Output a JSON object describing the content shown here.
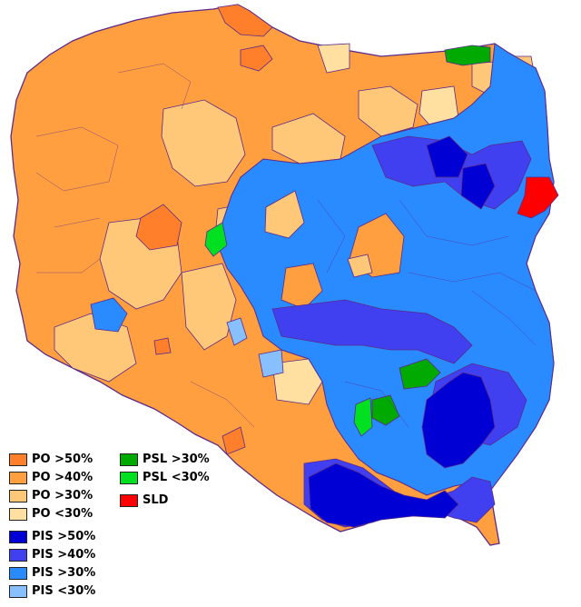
{
  "map": {
    "colors": {
      "po50": "#ff7f2a",
      "po40": "#ff9f40",
      "po30": "#ffc878",
      "po0": "#ffe0a0",
      "pis50": "#0000d4",
      "pis40": "#4040f0",
      "pis30": "#2a8aff",
      "pis0": "#88c0ff",
      "psl30": "#00aa00",
      "psl0": "#00e020",
      "sld": "#ff0000",
      "border": "#5a2a8a"
    }
  },
  "legend": {
    "left": [
      {
        "label": "PO >50%",
        "color": "#ff7f2a"
      },
      {
        "label": "PO >40%",
        "color": "#ff9f40"
      },
      {
        "label": "PO >30%",
        "color": "#ffc878"
      },
      {
        "label": "PO <30%",
        "color": "#ffe0a0"
      },
      {
        "label": "PIS >50%",
        "color": "#0000d4"
      },
      {
        "label": "PIS >40%",
        "color": "#4040f0"
      },
      {
        "label": "PIS >30%",
        "color": "#2a8aff"
      },
      {
        "label": "PIS <30%",
        "color": "#88c0ff"
      }
    ],
    "right": [
      {
        "label": "PSL >30%",
        "color": "#00aa00"
      },
      {
        "label": "PSL <30%",
        "color": "#00e020"
      },
      {
        "label": "SLD",
        "color": "#ff0000"
      }
    ]
  }
}
